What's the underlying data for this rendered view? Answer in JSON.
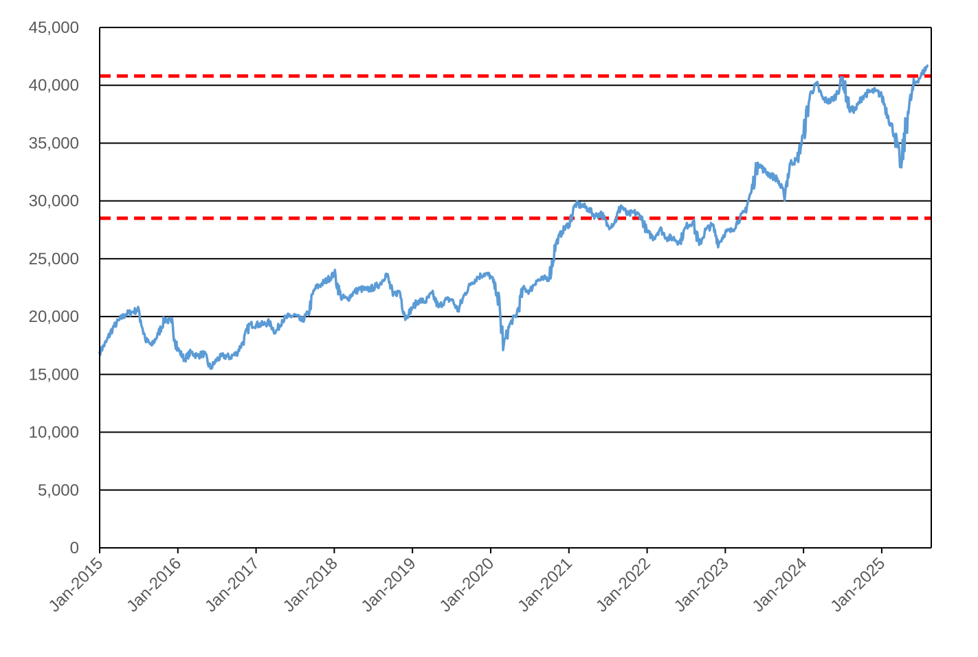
{
  "chart_data": {
    "type": "line",
    "title": "",
    "xlabel": "",
    "ylabel": "",
    "x_range": [
      "2015-01",
      "2025-08"
    ],
    "ylim": [
      0,
      45000
    ],
    "y_ticks": [
      {
        "value": 0,
        "label": "0"
      },
      {
        "value": 5000,
        "label": "5,000"
      },
      {
        "value": 10000,
        "label": "10,000"
      },
      {
        "value": 15000,
        "label": "15,000"
      },
      {
        "value": 20000,
        "label": "20,000"
      },
      {
        "value": 25000,
        "label": "25,000"
      },
      {
        "value": 30000,
        "label": "30,000"
      },
      {
        "value": 35000,
        "label": "35,000"
      },
      {
        "value": 40000,
        "label": "40,000"
      },
      {
        "value": 45000,
        "label": "45,000"
      }
    ],
    "x_ticks": [
      {
        "value": "2015-01",
        "label": "Jan-2015"
      },
      {
        "value": "2016-01",
        "label": "Jan-2016"
      },
      {
        "value": "2017-01",
        "label": "Jan-2017"
      },
      {
        "value": "2018-01",
        "label": "Jan-2018"
      },
      {
        "value": "2019-01",
        "label": "Jan-2019"
      },
      {
        "value": "2020-01",
        "label": "Jan-2020"
      },
      {
        "value": "2021-01",
        "label": "Jan-2021"
      },
      {
        "value": "2022-01",
        "label": "Jan-2022"
      },
      {
        "value": "2023-01",
        "label": "Jan-2023"
      },
      {
        "value": "2024-01",
        "label": "Jan-2024"
      },
      {
        "value": "2025-01",
        "label": "Jan-2025"
      }
    ],
    "grid": true,
    "legend": "none",
    "colors": {
      "series": "#5b9bd5",
      "reference": "#ff0000",
      "grid": "#000000",
      "tick_text": "#595959"
    },
    "reference_lines": [
      {
        "value": 40800,
        "style": "dashed"
      },
      {
        "value": 28500,
        "style": "dashed"
      }
    ],
    "series": [
      {
        "x": [
          "2015-01",
          "2015-02",
          "2015-03",
          "2015-04",
          "2015-05",
          "2015-06",
          "2015-07",
          "2015-08",
          "2015-09",
          "2015-10",
          "2015-11",
          "2015-12",
          "2016-01",
          "2016-02",
          "2016-03",
          "2016-04",
          "2016-05",
          "2016-06",
          "2016-07",
          "2016-08",
          "2016-09",
          "2016-10",
          "2016-11",
          "2016-12",
          "2017-01",
          "2017-02",
          "2017-03",
          "2017-04",
          "2017-05",
          "2017-06",
          "2017-07",
          "2017-08",
          "2017-09",
          "2017-10",
          "2017-11",
          "2017-12",
          "2018-01",
          "2018-02",
          "2018-03",
          "2018-04",
          "2018-05",
          "2018-06",
          "2018-07",
          "2018-08",
          "2018-09",
          "2018-10",
          "2018-11",
          "2018-12",
          "2019-01",
          "2019-02",
          "2019-03",
          "2019-04",
          "2019-05",
          "2019-06",
          "2019-07",
          "2019-08",
          "2019-09",
          "2019-10",
          "2019-11",
          "2019-12",
          "2020-01",
          "2020-02",
          "2020-03",
          "2020-04",
          "2020-05",
          "2020-06",
          "2020-07",
          "2020-08",
          "2020-09",
          "2020-10",
          "2020-11",
          "2020-12",
          "2021-01",
          "2021-02",
          "2021-03",
          "2021-04",
          "2021-05",
          "2021-06",
          "2021-07",
          "2021-08",
          "2021-09",
          "2021-10",
          "2021-11",
          "2021-12",
          "2022-01",
          "2022-02",
          "2022-03",
          "2022-04",
          "2022-05",
          "2022-06",
          "2022-07",
          "2022-08",
          "2022-09",
          "2022-10",
          "2022-11",
          "2022-12",
          "2023-01",
          "2023-02",
          "2023-03",
          "2023-04",
          "2023-05",
          "2023-06",
          "2023-07",
          "2023-08",
          "2023-09",
          "2023-10",
          "2023-11",
          "2023-12",
          "2024-01",
          "2024-02",
          "2024-03",
          "2024-04",
          "2024-05",
          "2024-06",
          "2024-07",
          "2024-08",
          "2024-09",
          "2024-10",
          "2024-11",
          "2024-12",
          "2025-01",
          "2025-02",
          "2025-03",
          "2025-04",
          "2025-05",
          "2025-06",
          "2025-07",
          "2025-08"
        ],
        "values": [
          16900,
          17800,
          19000,
          19700,
          20200,
          20400,
          20600,
          18000,
          17500,
          18500,
          19800,
          19500,
          17200,
          16300,
          16900,
          16600,
          16800,
          15500,
          16300,
          16600,
          16500,
          16800,
          17800,
          19300,
          19300,
          19300,
          19500,
          18600,
          19700,
          20000,
          20100,
          19600,
          20300,
          22400,
          22800,
          23200,
          23700,
          21700,
          21500,
          22100,
          22400,
          22300,
          22500,
          22800,
          23700,
          21800,
          22200,
          19900,
          20800,
          21400,
          21300,
          22000,
          20800,
          21400,
          21500,
          20500,
          21900,
          22900,
          23400,
          23700,
          23500,
          22000,
          17500,
          19400,
          20200,
          22400,
          22200,
          23100,
          23200,
          23400,
          26300,
          27400,
          28000,
          29700,
          29600,
          29300,
          28700,
          28900,
          27800,
          28100,
          29600,
          28800,
          29000,
          28700,
          27300,
          26800,
          27600,
          26800,
          26800,
          26400,
          27800,
          28200,
          26200,
          27500,
          27900,
          26300,
          27300,
          27400,
          28300,
          29100,
          30800,
          33300,
          32600,
          32200,
          31900,
          30500,
          33300,
          33500,
          35700,
          39200,
          40100,
          38800,
          38600,
          39100,
          40700,
          37900,
          37900,
          39000,
          39400,
          39500,
          39100,
          37300,
          35700,
          32900,
          37700,
          40100,
          40800,
          41700
        ]
      }
    ]
  }
}
